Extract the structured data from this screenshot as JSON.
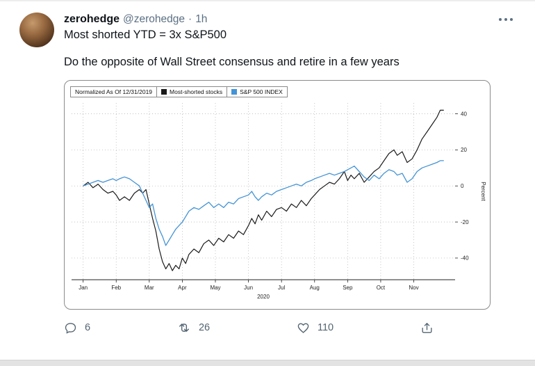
{
  "tweet": {
    "author": "zerohedge",
    "handle": "@zerohedge",
    "separator": "·",
    "time": "1h",
    "line1": "Most shorted YTD = 3x S&P500",
    "line2": "Do the opposite of Wall Street consensus and retire in a few years",
    "actions": {
      "reply_count": "6",
      "retweet_count": "26",
      "like_count": "110"
    }
  },
  "colors": {
    "series_black": "#1a1a1a",
    "series_blue": "#4393d5",
    "icon_gray": "#536471",
    "grid_gray": "#b8b8b8"
  },
  "chart_data": {
    "type": "line",
    "legend": [
      "Normalized As Of 12/31/2019",
      "Most-shorted stocks",
      "S&P 500 INDEX"
    ],
    "x_tick_labels": [
      "Jan",
      "Feb",
      "Mar",
      "Apr",
      "May",
      "Jun",
      "Jul",
      "Aug",
      "Sep",
      "Oct",
      "Nov"
    ],
    "x_axis_year": "2020",
    "ylabel": "Percent",
    "y_ticks": [
      40,
      20,
      0,
      -20,
      -40
    ],
    "ylim": [
      -52,
      46
    ],
    "xlim": [
      -0.35,
      11.25
    ],
    "grid": "dotted",
    "legend_position": "top-left",
    "series": [
      {
        "name": "Most-shorted stocks",
        "color": "#1a1a1a",
        "width": 1.2,
        "x": [
          0,
          0.15,
          0.3,
          0.45,
          0.6,
          0.75,
          0.9,
          1.0,
          1.1,
          1.25,
          1.4,
          1.55,
          1.7,
          1.8,
          1.9,
          2.0,
          2.1,
          2.2,
          2.3,
          2.4,
          2.5,
          2.6,
          2.7,
          2.8,
          2.9,
          3.0,
          3.1,
          3.2,
          3.35,
          3.5,
          3.65,
          3.8,
          3.95,
          4.1,
          4.25,
          4.4,
          4.55,
          4.7,
          4.85,
          5.0,
          5.1,
          5.2,
          5.3,
          5.4,
          5.55,
          5.7,
          5.85,
          6.0,
          6.15,
          6.3,
          6.45,
          6.6,
          6.75,
          6.9,
          7.0,
          7.15,
          7.3,
          7.45,
          7.6,
          7.75,
          7.9,
          8.0,
          8.1,
          8.2,
          8.35,
          8.5,
          8.65,
          8.8,
          8.95,
          9.1,
          9.25,
          9.4,
          9.5,
          9.65,
          9.8,
          9.95,
          10.1,
          10.25,
          10.4,
          10.55,
          10.7,
          10.8,
          10.9
        ],
        "y": [
          0,
          2,
          -1,
          1,
          -2,
          -4,
          -3,
          -5,
          -8,
          -6,
          -8,
          -4,
          -2,
          -4,
          -2,
          -10,
          -18,
          -25,
          -35,
          -42,
          -46,
          -43,
          -47,
          -44,
          -46,
          -40,
          -43,
          -38,
          -35,
          -37,
          -32,
          -30,
          -33,
          -29,
          -31,
          -27,
          -29,
          -25,
          -27,
          -22,
          -18,
          -21,
          -16,
          -19,
          -14,
          -17,
          -13,
          -12,
          -14,
          -10,
          -12,
          -8,
          -11,
          -7,
          -5,
          -2,
          0,
          2,
          1,
          4,
          8,
          3,
          6,
          4,
          7,
          2,
          5,
          8,
          10,
          14,
          18,
          20,
          17,
          19,
          13,
          15,
          20,
          26,
          30,
          34,
          38,
          42,
          42
        ]
      },
      {
        "name": "S&P 500 INDEX",
        "color": "#4393d5",
        "width": 1.3,
        "x": [
          0,
          0.15,
          0.3,
          0.45,
          0.6,
          0.75,
          0.9,
          1.0,
          1.1,
          1.25,
          1.4,
          1.55,
          1.7,
          1.8,
          1.9,
          2.0,
          2.1,
          2.2,
          2.3,
          2.4,
          2.5,
          2.6,
          2.7,
          2.8,
          2.9,
          3.0,
          3.1,
          3.2,
          3.35,
          3.5,
          3.65,
          3.8,
          3.95,
          4.1,
          4.25,
          4.4,
          4.55,
          4.7,
          4.85,
          5.0,
          5.1,
          5.2,
          5.3,
          5.4,
          5.55,
          5.7,
          5.85,
          6.0,
          6.15,
          6.3,
          6.45,
          6.6,
          6.75,
          6.9,
          7.0,
          7.15,
          7.3,
          7.45,
          7.6,
          7.75,
          7.9,
          8.0,
          8.1,
          8.2,
          8.35,
          8.5,
          8.65,
          8.8,
          8.95,
          9.1,
          9.25,
          9.4,
          9.5,
          9.65,
          9.8,
          9.95,
          10.1,
          10.25,
          10.4,
          10.55,
          10.7,
          10.8,
          10.9
        ],
        "y": [
          0,
          1,
          2,
          3,
          2,
          3,
          4,
          3,
          4,
          5,
          4,
          2,
          0,
          -4,
          -8,
          -12,
          -10,
          -18,
          -24,
          -28,
          -33,
          -30,
          -27,
          -24,
          -22,
          -20,
          -17,
          -14,
          -12,
          -13,
          -11,
          -9,
          -12,
          -10,
          -12,
          -9,
          -10,
          -7,
          -6,
          -5,
          -3,
          -6,
          -8,
          -6,
          -4,
          -5,
          -3,
          -2,
          -1,
          0,
          1,
          0,
          2,
          3,
          4,
          5,
          6,
          7,
          6,
          7,
          8,
          9,
          10,
          11,
          8,
          5,
          3,
          6,
          4,
          7,
          9,
          8,
          6,
          7,
          2,
          4,
          8,
          10,
          11,
          12,
          13,
          14,
          14
        ]
      }
    ]
  }
}
